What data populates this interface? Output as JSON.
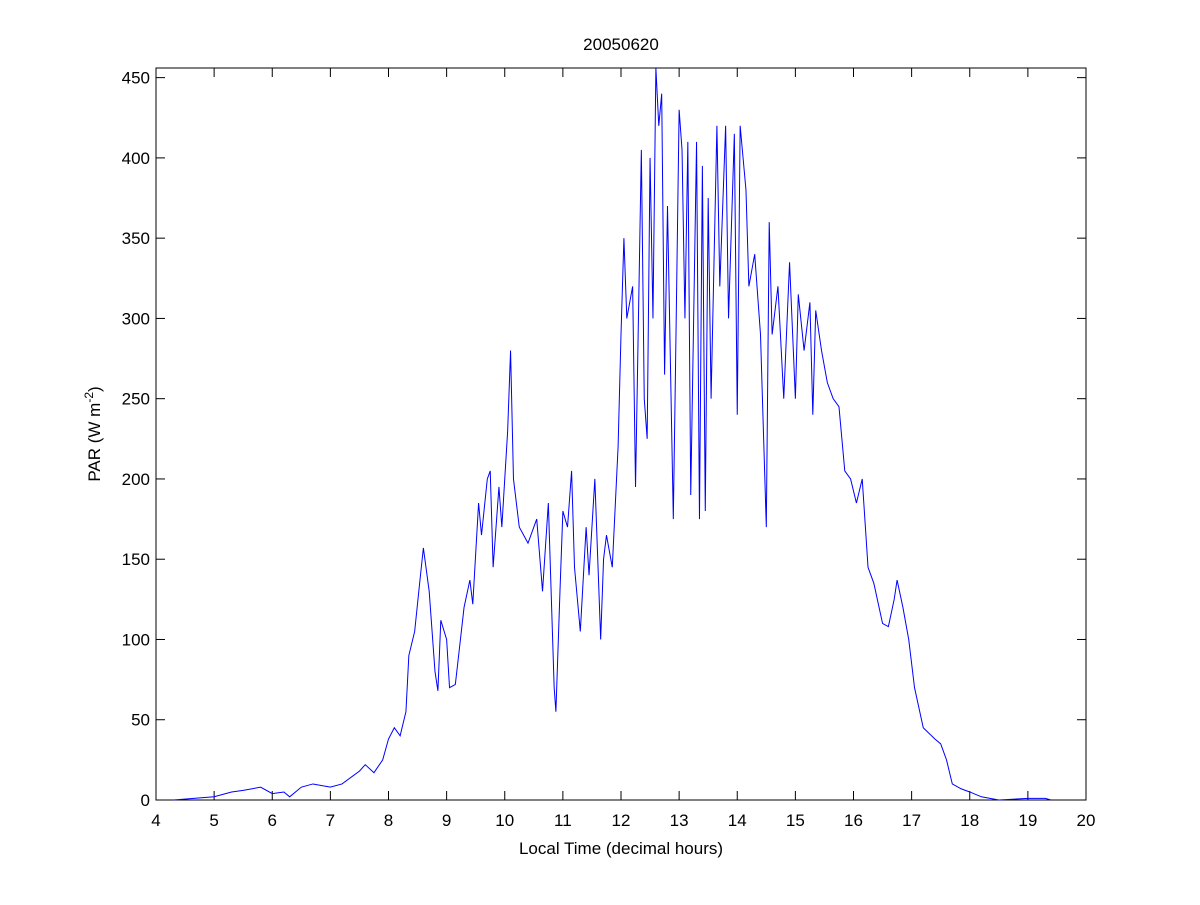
{
  "chart_data": {
    "type": "line",
    "title": "20050620",
    "xlabel": "Local Time (decimal hours)",
    "ylabel": [
      "PAR (W m",
      "-2",
      ")"
    ],
    "x": [
      4.3,
      5,
      5.3,
      5.5,
      5.8,
      6,
      6.2,
      6.3,
      6.5,
      6.7,
      7,
      7.2,
      7.5,
      7.6,
      7.75,
      7.9,
      8.0,
      8.1,
      8.2,
      8.3,
      8.35,
      8.45,
      8.55,
      8.6,
      8.7,
      8.8,
      8.85,
      8.9,
      9.0,
      9.05,
      9.15,
      9.3,
      9.4,
      9.45,
      9.55,
      9.6,
      9.7,
      9.75,
      9.8,
      9.9,
      9.95,
      10.05,
      10.1,
      10.15,
      10.25,
      10.4,
      10.55,
      10.65,
      10.75,
      10.85,
      10.88,
      10.95,
      11.0,
      11.08,
      11.15,
      11.2,
      11.3,
      11.4,
      11.45,
      11.55,
      11.65,
      11.7,
      11.75,
      11.85,
      11.95,
      12.0,
      12.05,
      12.1,
      12.2,
      12.25,
      12.3,
      12.35,
      12.4,
      12.45,
      12.5,
      12.55,
      12.6,
      12.65,
      12.7,
      12.75,
      12.8,
      12.9,
      12.95,
      13.0,
      13.05,
      13.1,
      13.15,
      13.2,
      13.3,
      13.35,
      13.4,
      13.45,
      13.5,
      13.55,
      13.65,
      13.7,
      13.8,
      13.85,
      13.95,
      14.0,
      14.05,
      14.15,
      14.2,
      14.3,
      14.4,
      14.5,
      14.55,
      14.6,
      14.7,
      14.8,
      14.9,
      15.0,
      15.05,
      15.15,
      15.25,
      15.3,
      15.35,
      15.45,
      15.55,
      15.65,
      15.75,
      15.85,
      15.95,
      16.05,
      16.15,
      16.25,
      16.35,
      16.5,
      16.6,
      16.7,
      16.75,
      16.85,
      16.95,
      17.05,
      17.2,
      17.4,
      17.5,
      17.6,
      17.7,
      17.85,
      18.0,
      18.2,
      18.5,
      19.0,
      19.3,
      19.4
    ],
    "series": [
      {
        "color": "#0000ff",
        "values": [
          0,
          2,
          5,
          6,
          8,
          4,
          5,
          2,
          8,
          10,
          8,
          10,
          18,
          22,
          17,
          25,
          38,
          45,
          40,
          55,
          90,
          105,
          140,
          157,
          130,
          80,
          68,
          112,
          100,
          70,
          72,
          120,
          137,
          122,
          185,
          165,
          200,
          205,
          145,
          195,
          170,
          230,
          280,
          200,
          170,
          160,
          175,
          130,
          185,
          70,
          55,
          130,
          180,
          170,
          205,
          145,
          105,
          170,
          140,
          200,
          100,
          150,
          165,
          145,
          220,
          290,
          350,
          300,
          320,
          195,
          300,
          405,
          250,
          225,
          400,
          300,
          456,
          420,
          440,
          265,
          370,
          175,
          300,
          430,
          405,
          300,
          410,
          190,
          410,
          175,
          395,
          180,
          375,
          250,
          420,
          320,
          420,
          300,
          415,
          240,
          420,
          380,
          320,
          340,
          290,
          170,
          360,
          290,
          320,
          250,
          335,
          250,
          315,
          280,
          310,
          240,
          305,
          280,
          260,
          250,
          245,
          205,
          200,
          185,
          200,
          145,
          135,
          110,
          108,
          125,
          137,
          120,
          100,
          70,
          45,
          38,
          35,
          25,
          10,
          7,
          5,
          2,
          0,
          1,
          1,
          0
        ]
      }
    ],
    "xlim": [
      4,
      20
    ],
    "xticks": [
      4,
      5,
      6,
      7,
      8,
      9,
      10,
      11,
      12,
      13,
      14,
      15,
      16,
      17,
      18,
      19,
      20
    ],
    "ylim": [
      0,
      456
    ],
    "yticks": [
      0,
      50,
      100,
      150,
      200,
      250,
      300,
      350,
      400,
      450
    ]
  }
}
